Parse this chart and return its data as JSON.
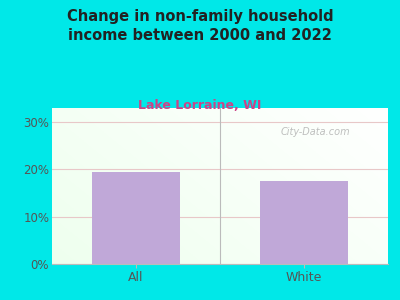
{
  "title": "Change in non-family household\nincome between 2000 and 2022",
  "subtitle": "Lake Lorraine, WI",
  "categories": [
    "All",
    "White"
  ],
  "values": [
    19.5,
    17.5
  ],
  "bar_color": "#c0a8d8",
  "title_color": "#222222",
  "title_fontsize": 10.5,
  "subtitle_color": "#cc4488",
  "subtitle_fontsize": 9,
  "outer_bg": "#00e8e8",
  "plot_bg_green": [
    0.88,
    1.0,
    0.88
  ],
  "plot_bg_white": [
    1.0,
    1.0,
    1.0
  ],
  "yticks": [
    0,
    10,
    20,
    30
  ],
  "ylim": [
    0,
    33
  ],
  "watermark": "City-Data.com",
  "tick_label_fontsize": 8.5,
  "xlabel_fontsize": 9,
  "grid_color": "#e8c8c8",
  "separator_color": "#bbbbbb"
}
